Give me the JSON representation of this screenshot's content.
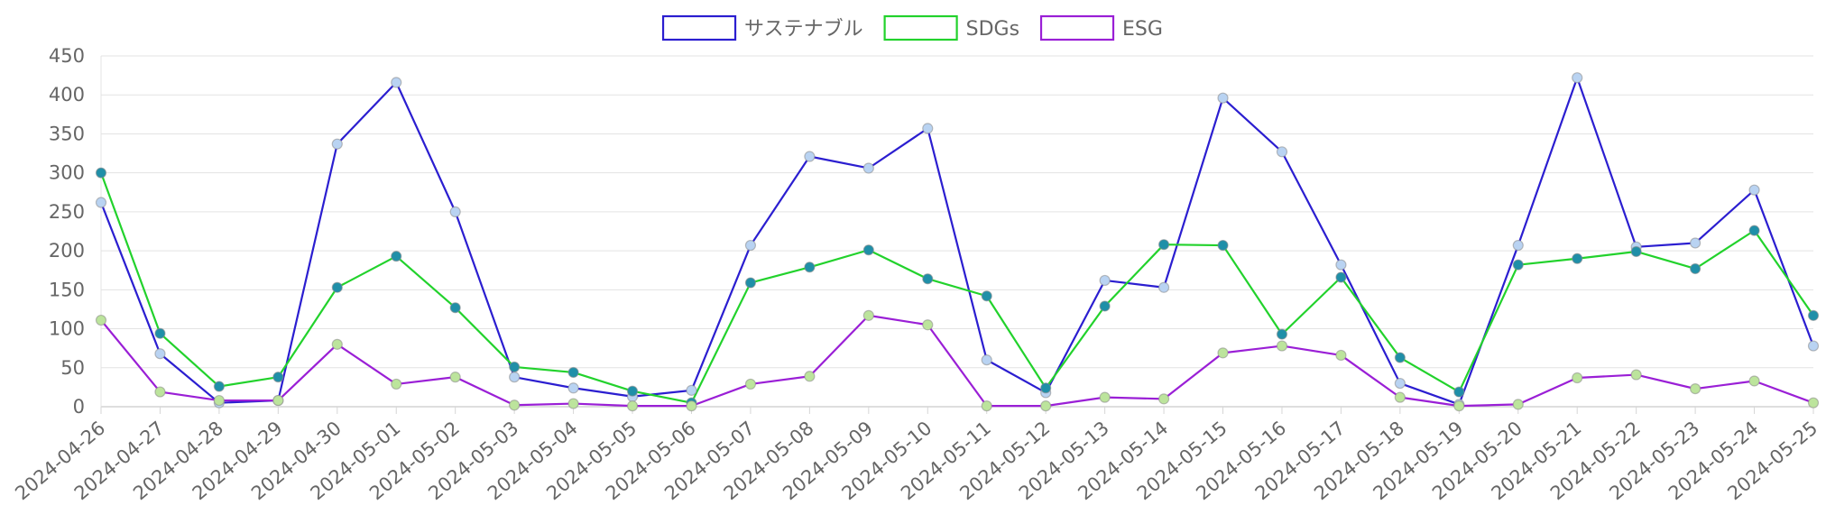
{
  "chart_data": {
    "type": "line",
    "title": "",
    "xlabel": "",
    "ylabel": "",
    "ylim": [
      0,
      450
    ],
    "yticks": [
      0,
      50,
      100,
      150,
      200,
      250,
      300,
      350,
      400,
      450
    ],
    "grid": true,
    "legend_position": "top-center",
    "categories": [
      "2024-04-26",
      "2024-04-27",
      "2024-04-28",
      "2024-04-29",
      "2024-04-30",
      "2024-05-01",
      "2024-05-02",
      "2024-05-03",
      "2024-05-04",
      "2024-05-05",
      "2024-05-06",
      "2024-05-07",
      "2024-05-08",
      "2024-05-09",
      "2024-05-10",
      "2024-05-11",
      "2024-05-12",
      "2024-05-13",
      "2024-05-14",
      "2024-05-15",
      "2024-05-16",
      "2024-05-17",
      "2024-05-18",
      "2024-05-19",
      "2024-05-20",
      "2024-05-21",
      "2024-05-22",
      "2024-05-23",
      "2024-05-24",
      "2024-05-25"
    ],
    "series": [
      {
        "name": "サステナブル",
        "color": "#2b1ed0",
        "point_fill": "#b9d3f2",
        "values": [
          262,
          68,
          5,
          8,
          337,
          416,
          250,
          38,
          24,
          13,
          21,
          207,
          321,
          306,
          357,
          60,
          18,
          162,
          153,
          396,
          327,
          182,
          30,
          3,
          207,
          422,
          205,
          210,
          278,
          78
        ]
      },
      {
        "name": "SDGs",
        "color": "#22d22c",
        "point_fill": "#1f8fa8",
        "values": [
          300,
          94,
          26,
          38,
          153,
          193,
          127,
          51,
          44,
          20,
          5,
          159,
          179,
          201,
          164,
          142,
          24,
          129,
          208,
          207,
          93,
          166,
          63,
          19,
          182,
          190,
          199,
          177,
          226,
          117
        ]
      },
      {
        "name": "ESG",
        "color": "#9a1fd6",
        "point_fill": "#bce49c",
        "values": [
          111,
          19,
          8,
          8,
          80,
          29,
          38,
          2,
          4,
          1,
          1,
          29,
          39,
          117,
          105,
          1,
          1,
          12,
          10,
          69,
          78,
          66,
          12,
          1,
          3,
          37,
          41,
          23,
          33,
          5
        ]
      }
    ]
  }
}
